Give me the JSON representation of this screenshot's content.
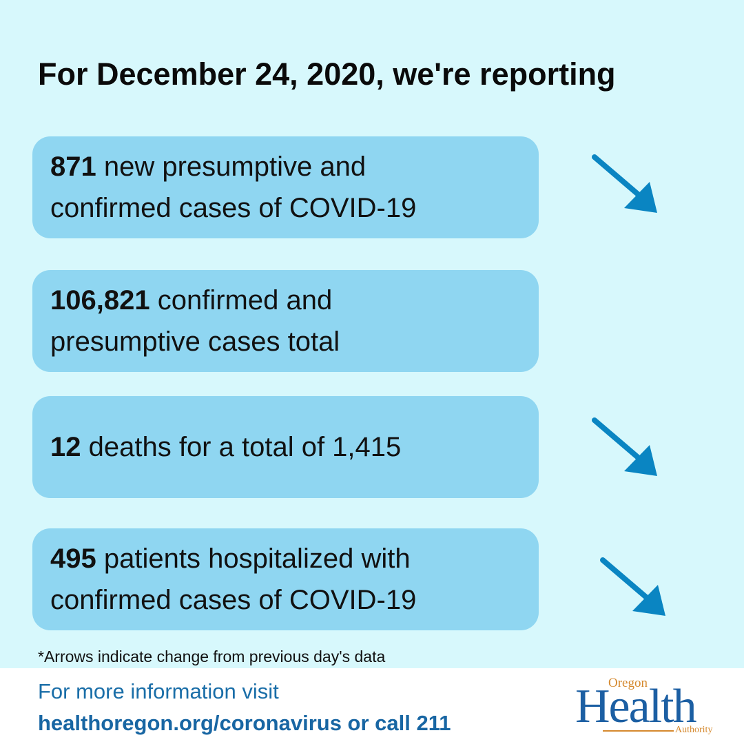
{
  "headline": "For December 24, 2020, we're reporting",
  "stats": [
    {
      "number": "871",
      "text": " new presumptive and confirmed cases of COVID-19",
      "arrow": "down-right-arrow-icon"
    },
    {
      "number": "106,821",
      "text": " confirmed and presumptive cases total",
      "arrow": null
    },
    {
      "number": "12",
      "text": " deaths for a total of 1,415",
      "arrow": "down-right-arrow-icon"
    },
    {
      "number": "495",
      "text": " patients hospitalized with confirmed cases of COVID-19",
      "arrow": "down-right-arrow-icon"
    }
  ],
  "footnote": "*Arrows indicate change from previous day's data",
  "footer": {
    "line1": "For more information visit",
    "line2": "healthoregon.org/coronavirus or call 211"
  },
  "logo": {
    "top": "Oregon",
    "main": "Health",
    "bottom": "Authority"
  },
  "colors": {
    "background": "#d7f8fc",
    "card": "#8fd6f1",
    "arrow": "#0a85c2",
    "link": "#1866a3",
    "logo_blue": "#1c5fa3",
    "logo_gold": "#d5892e"
  }
}
